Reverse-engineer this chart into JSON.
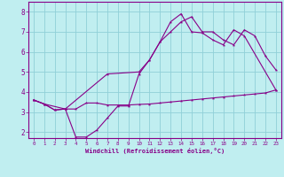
{
  "background_color": "#c0eef0",
  "grid_color": "#90d0d8",
  "line_color": "#880088",
  "xlabel": "Windchill (Refroidissement éolien,°C)",
  "xlabel_color": "#880088",
  "tick_color": "#880088",
  "xlim": [
    -0.5,
    23.5
  ],
  "ylim": [
    1.7,
    8.5
  ],
  "yticks": [
    2,
    3,
    4,
    5,
    6,
    7,
    8
  ],
  "xticks": [
    0,
    1,
    2,
    3,
    4,
    5,
    6,
    7,
    8,
    9,
    10,
    11,
    12,
    13,
    14,
    15,
    16,
    17,
    18,
    19,
    20,
    21,
    22,
    23
  ],
  "line1_x": [
    0,
    1,
    2,
    3,
    4,
    5,
    6,
    7,
    8,
    9,
    10,
    11,
    12,
    13,
    14,
    15,
    16,
    17,
    18,
    19,
    20,
    21,
    22,
    23
  ],
  "line1_y": [
    3.6,
    3.4,
    3.1,
    3.15,
    3.15,
    3.45,
    3.45,
    3.35,
    3.35,
    3.35,
    3.38,
    3.4,
    3.45,
    3.5,
    3.55,
    3.6,
    3.65,
    3.7,
    3.75,
    3.8,
    3.85,
    3.9,
    3.95,
    4.1
  ],
  "line2_x": [
    0,
    1,
    2,
    3,
    4,
    5,
    6,
    7,
    8,
    9,
    10,
    11,
    12,
    13,
    14,
    15,
    16,
    17,
    18,
    19,
    20,
    21,
    22,
    23
  ],
  "line2_y": [
    3.6,
    3.4,
    3.1,
    3.15,
    1.75,
    1.75,
    2.1,
    2.7,
    3.3,
    3.3,
    4.9,
    5.6,
    6.5,
    7.0,
    7.5,
    7.75,
    7.0,
    7.0,
    6.6,
    6.35,
    7.1,
    6.8,
    5.8,
    5.1
  ],
  "line3_x": [
    0,
    1,
    3,
    7,
    10,
    11,
    12,
    13,
    14,
    15,
    16,
    17,
    18,
    19,
    20,
    23
  ],
  "line3_y": [
    3.6,
    3.4,
    3.15,
    4.9,
    5.0,
    5.6,
    6.5,
    7.5,
    7.9,
    7.0,
    6.95,
    6.6,
    6.35,
    7.1,
    6.8,
    4.1
  ]
}
